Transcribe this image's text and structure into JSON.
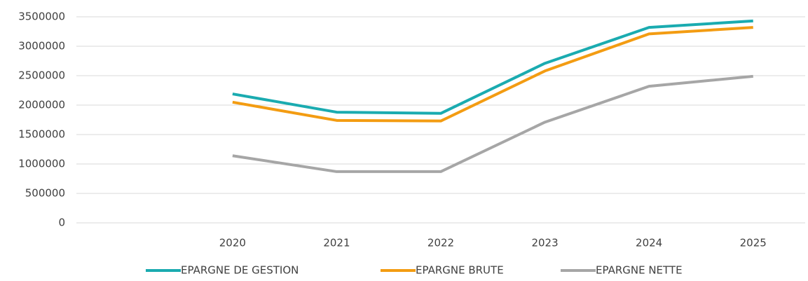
{
  "chart_data": {
    "type": "line",
    "categories": [
      null,
      "2020",
      "2021",
      "2022",
      "2023",
      "2024",
      "2025"
    ],
    "series": [
      {
        "name": "EPARGNE DE GESTION",
        "color": "#1aabb0",
        "values": [
          null,
          2190000,
          1880000,
          1860000,
          2710000,
          3320000,
          3430000
        ]
      },
      {
        "name": "EPARGNE BRUTE",
        "color": "#f39c12",
        "values": [
          null,
          2050000,
          1740000,
          1730000,
          2580000,
          3210000,
          3320000
        ]
      },
      {
        "name": "EPARGNE NETTE",
        "color": "#a6a6a6",
        "values": [
          null,
          1140000,
          870000,
          870000,
          1710000,
          2320000,
          2490000
        ]
      }
    ],
    "ylim": [
      0,
      3500000
    ],
    "yticks": [
      0,
      500000,
      1000000,
      1500000,
      2000000,
      2500000,
      3000000,
      3500000
    ],
    "grid": true,
    "legend": "bottom"
  }
}
